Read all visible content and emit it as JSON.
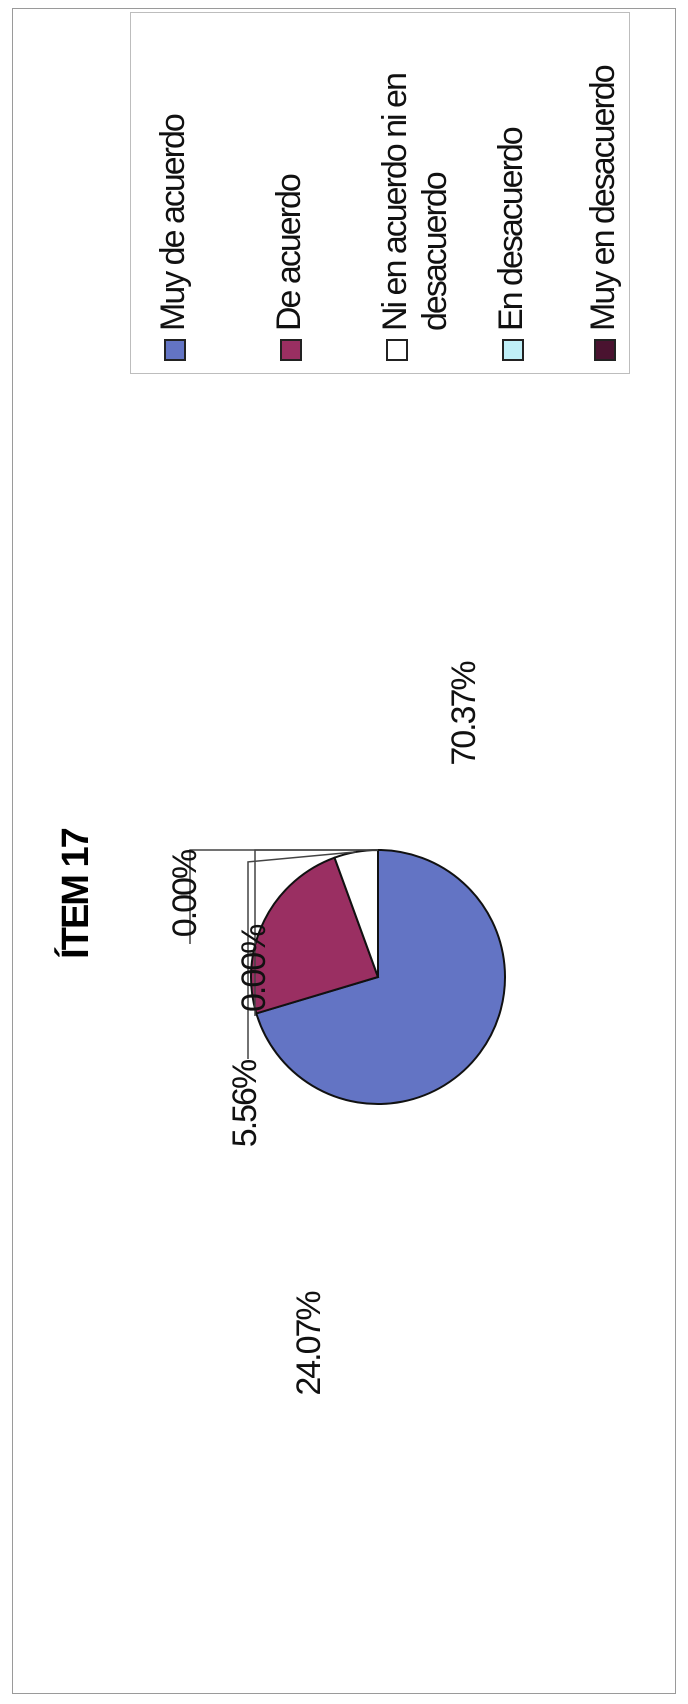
{
  "chart_data": {
    "type": "pie",
    "title": "ÍTEM 17",
    "categories": [
      "Muy de acuerdo",
      "De acuerdo",
      "Ni en acuerdo ni en desacuerdo",
      "En desacuerdo",
      "Muy en desacuerdo"
    ],
    "values": [
      70.37,
      24.07,
      5.56,
      0.0,
      0.0
    ],
    "data_labels": [
      "70.37%",
      "24.07%",
      "5.56%",
      "0.00%",
      "0.00%"
    ],
    "colors": [
      "#6374c4",
      "#9a2f62",
      "#ffffff",
      "#bfeff7",
      "#4a1330"
    ],
    "legend_position": "right"
  }
}
